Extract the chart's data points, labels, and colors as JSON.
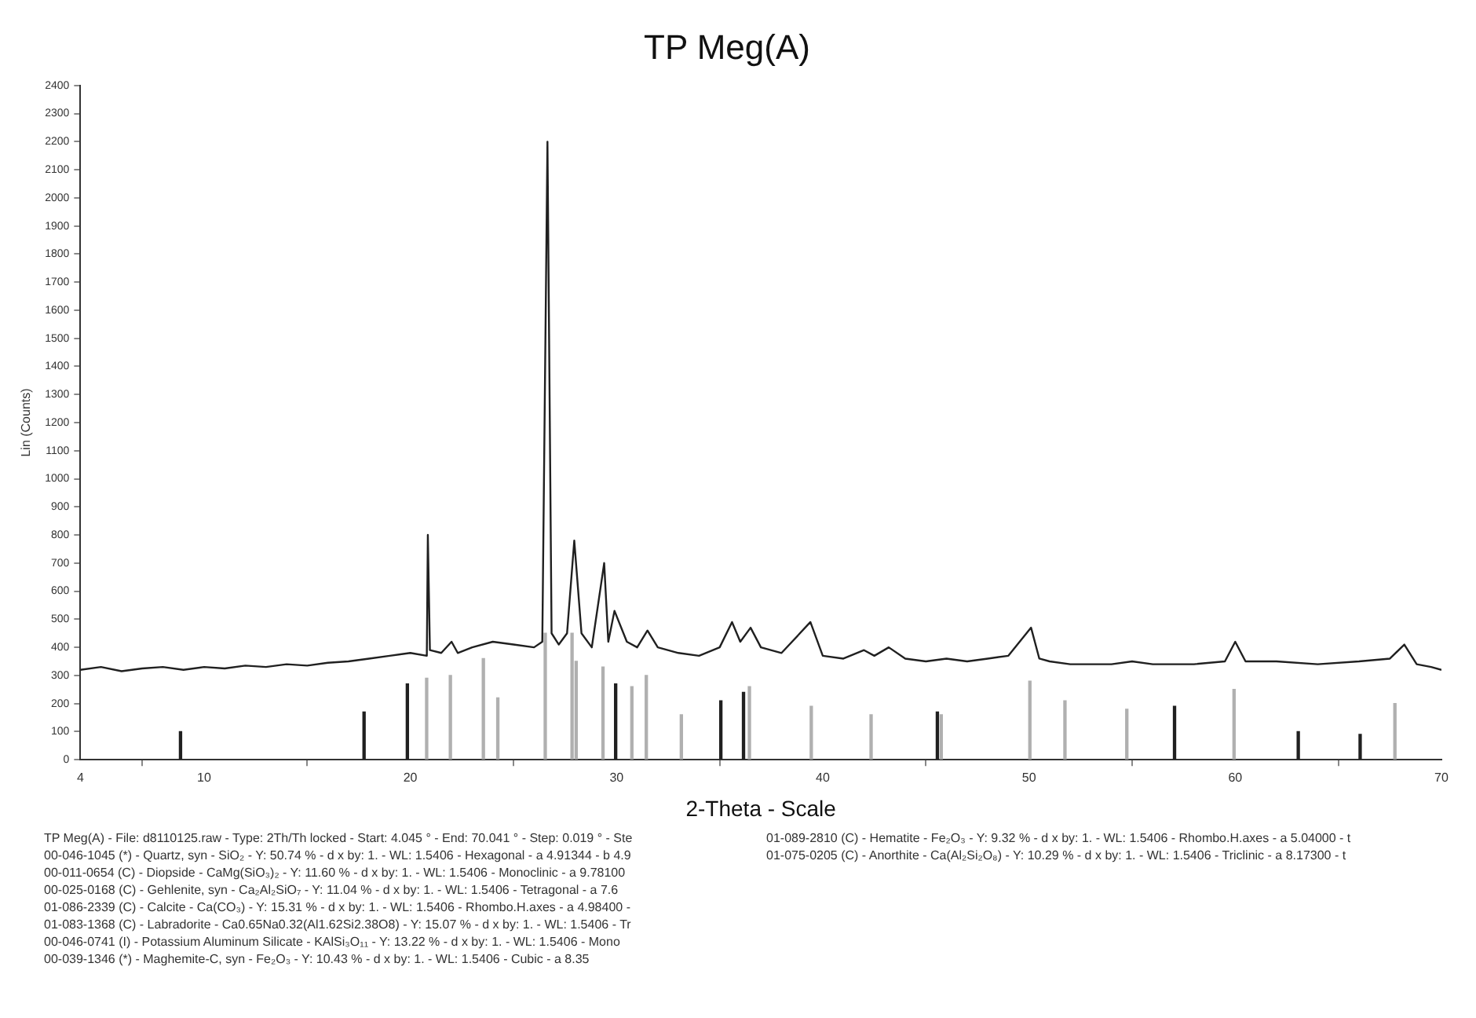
{
  "chart_data": {
    "type": "line",
    "title": "TP Meg(A)",
    "xlabel": "2-Theta - Scale",
    "ylabel": "Lin (Counts)",
    "xlim": [
      4,
      70
    ],
    "xticks": [
      {
        "value": 4,
        "label": "4"
      },
      10,
      20,
      30,
      40,
      50,
      60,
      70
    ],
    "ylim": [
      0,
      2400
    ],
    "yticks": [
      0,
      100,
      200,
      300,
      400,
      500,
      600,
      700,
      800,
      900,
      1000,
      1100,
      1200,
      1300,
      1400,
      1500,
      1600,
      1700,
      1800,
      1900,
      2000,
      2100,
      2200,
      2300,
      2400
    ],
    "grid": false,
    "legend": false,
    "marker": "none",
    "line_style": "solid",
    "series": [
      {
        "type": "bar",
        "color": "#b0b0b0",
        "x": [
          20.85,
          22,
          23.6,
          24.3,
          26.6,
          27.9,
          28.1,
          29.4,
          30.8,
          31.5,
          33.2,
          36.5,
          39.5,
          42.4,
          45.8,
          50.1,
          51.8,
          54.8,
          60,
          67.8
        ],
        "values": [
          290,
          300,
          360,
          220,
          450,
          450,
          350,
          330,
          260,
          300,
          160,
          260,
          190,
          160,
          160,
          280,
          210,
          180,
          250,
          200
        ]
      },
      {
        "type": "bar",
        "color": "#202020",
        "x": [
          8.8,
          17.7,
          19.8,
          29.9,
          35,
          36.1,
          45.5,
          57,
          63,
          66
        ],
        "values": [
          100,
          170,
          270,
          270,
          210,
          240,
          170,
          190,
          100,
          90
        ]
      },
      {
        "color": "#202020",
        "x": [
          4,
          5,
          6,
          7,
          8,
          9,
          10,
          11,
          12,
          13,
          14,
          15,
          16,
          17,
          18,
          19,
          20,
          20.8,
          20.85,
          20.95,
          21.5,
          22,
          22.3,
          23,
          24,
          25,
          26,
          26.4,
          26.65,
          26.85,
          27.2,
          27.6,
          27.95,
          28.3,
          28.8,
          29.4,
          29.6,
          29.9,
          30.5,
          31,
          31.5,
          32,
          33,
          34,
          35,
          35.6,
          36,
          36.5,
          37,
          38,
          39.4,
          40,
          41,
          42,
          42.5,
          43.2,
          44,
          45,
          46,
          47,
          48,
          49,
          50.1,
          50.5,
          51,
          52,
          54,
          55,
          56,
          58,
          59.5,
          60,
          60.5,
          62,
          64,
          66,
          67.5,
          68.2,
          68.8,
          69.5,
          70
        ],
        "values": [
          320,
          330,
          315,
          325,
          330,
          320,
          330,
          325,
          335,
          330,
          340,
          335,
          345,
          350,
          360,
          370,
          380,
          370,
          800,
          390,
          380,
          420,
          380,
          400,
          420,
          410,
          400,
          420,
          2200,
          450,
          410,
          450,
          780,
          450,
          400,
          700,
          420,
          530,
          420,
          400,
          460,
          400,
          380,
          370,
          400,
          490,
          420,
          470,
          400,
          380,
          490,
          370,
          360,
          390,
          370,
          400,
          360,
          350,
          360,
          350,
          360,
          370,
          470,
          360,
          350,
          340,
          340,
          350,
          340,
          340,
          350,
          420,
          350,
          350,
          340,
          350,
          360,
          410,
          340,
          330,
          320
        ]
      }
    ],
    "annotations": [
      "TP Meg(A) - File: d8110125.raw - Type: 2Th/Th locked - Start: 4.045 ° - End: 70.041 ° - Step: 0.019 ° - Ste",
      "00-046-1045 (*) - Quartz, syn - SiO₂ - Y: 50.74 % - d x by: 1. - WL: 1.5406 - Hexagonal - a 4.91344 - b 4.9",
      "00-011-0654 (C) - Diopside - CaMg(SiO₃)₂ - Y: 11.60 % - d x by: 1. - WL: 1.5406 - Monoclinic - a 9.78100",
      "00-025-0168 (C) - Gehlenite, syn - Ca₂Al₂SiO₇ - Y: 11.04 % - d x by: 1. - WL: 1.5406 - Tetragonal - a 7.6",
      "01-086-2339 (C) - Calcite - Ca(CO₃) - Y: 15.31 % - d x by: 1. - WL: 1.5406 - Rhombo.H.axes - a 4.98400 -",
      "01-083-1368 (C) - Labradorite - Ca0.65Na0.32(Al1.62Si2.38O8) - Y: 15.07 % - d x by: 1. - WL: 1.5406 - Tr",
      "00-046-0741 (I) - Potassium Aluminum Silicate - KAlSi₃O₁₁ - Y: 13.22 % - d x by: 1. - WL: 1.5406 - Mono",
      "00-039-1346 (*) - Maghemite-C, syn - Fe₂O₃ - Y: 10.43 % - d x by: 1. - WL: 1.5406 - Cubic - a 8.35",
      "01-089-2810 (C) - Hematite - Fe₂O₃ - Y: 9.32 % - d x by: 1. - WL: 1.5406 - Rhombo.H.axes - a 5.04000 - t",
      "01-075-0205 (C) - Anorthite - Ca(Al₂Si₂O₈) - Y: 10.29 % - d x by: 1. - WL: 1.5406 - Triclinic - a 8.17300 - t"
    ]
  }
}
